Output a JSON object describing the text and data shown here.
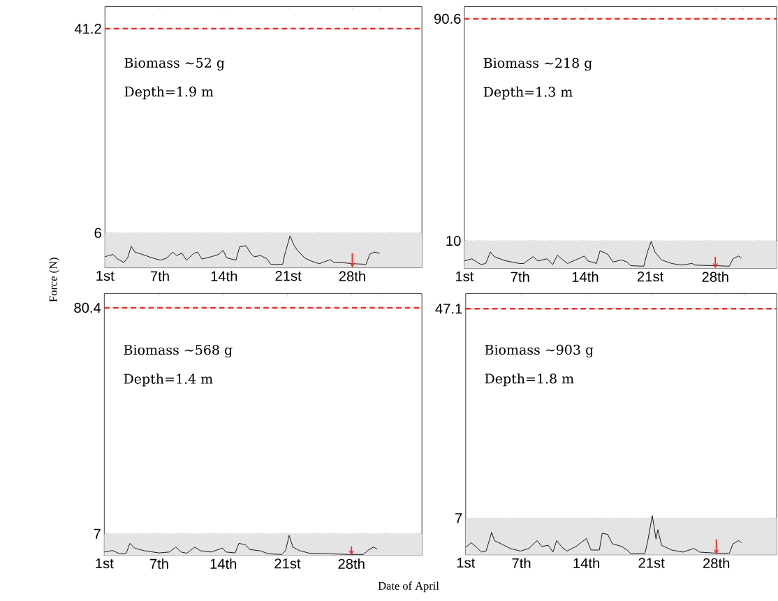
{
  "chart_data": [
    {
      "type": "line",
      "color": "#000000",
      "marker": "none",
      "ylabel": "Force (N)",
      "annotations": [
        "Biomass ∼52  g",
        "Depth=1.9 m"
      ],
      "xlim": [
        1,
        35.6
      ],
      "ylim": [
        0,
        45
      ],
      "grid": "y",
      "xticks": [
        {
          "value": 1,
          "label": "1st"
        },
        {
          "value": 7,
          "label": "7th"
        },
        {
          "value": 14,
          "label": "14th"
        },
        {
          "value": 21,
          "label": "21st"
        },
        {
          "value": 28,
          "label": "28th"
        },
        {
          "value": 31,
          "label": null
        }
      ],
      "yticks": [
        6,
        41.2
      ],
      "ref_lines": [
        {
          "axis": "y",
          "value": 41.2,
          "color": "#e8312f",
          "line_style": "dashed"
        }
      ],
      "bands": [
        {
          "axis": "y",
          "from": 0,
          "to": 6,
          "color": "#e4e4e4"
        }
      ],
      "x": [
        1,
        1.46,
        1.86,
        2.4,
        3.06,
        3.47,
        3.87,
        4.27,
        5.07,
        6.15,
        7.09,
        7.76,
        8.43,
        8.8,
        9.4,
        9.9,
        10.7,
        11.1,
        11.6,
        12.6,
        13.4,
        13.9,
        14.3,
        15.3,
        15.7,
        16.4,
        16.9,
        17.3,
        18.0,
        18.7,
        19.1,
        20.4,
        20.6,
        21.2,
        21.6,
        22.0,
        22.8,
        23.6,
        24.4,
        25.6,
        26.0,
        26.8,
        28.0,
        29.5,
        29.9,
        30.4,
        31.0
      ],
      "values": [
        1.9,
        2.1,
        2.3,
        1.5,
        0.9,
        1.7,
        3.7,
        2.7,
        2.3,
        1.7,
        1.3,
        1.7,
        2.7,
        2.1,
        2.5,
        1.3,
        2.5,
        2.7,
        1.5,
        1.9,
        2.3,
        3.0,
        1.7,
        1.3,
        3.6,
        3.8,
        2.5,
        1.9,
        2.1,
        1.5,
        0.6,
        0.6,
        2.1,
        5.5,
        4.0,
        3.0,
        1.7,
        1.1,
        0.7,
        1.4,
        0.9,
        0.9,
        0.7,
        0.6,
        2.3,
        2.7,
        2.5
      ]
    },
    {
      "type": "line",
      "color": "#000000",
      "marker": "none",
      "annotations": [
        "Biomass ∼218  g",
        "Depth=1.3 m"
      ],
      "xlim": [
        1,
        34.6
      ],
      "ylim": [
        0,
        95
      ],
      "grid": "y",
      "xticks": [
        {
          "value": 1,
          "label": "1st"
        },
        {
          "value": 7,
          "label": "7th"
        },
        {
          "value": 14,
          "label": "14th"
        },
        {
          "value": 21,
          "label": "21st"
        },
        {
          "value": 28,
          "label": "28th"
        },
        {
          "value": 31,
          "label": null
        }
      ],
      "yticks": [
        10,
        90.6
      ],
      "ref_lines": [
        {
          "axis": "y",
          "value": 90.6,
          "color": "#e8312f",
          "line_style": "dashed"
        }
      ],
      "bands": [
        {
          "axis": "y",
          "from": 0,
          "to": 10,
          "color": "#e4e4e4"
        }
      ],
      "x": [
        1,
        1.8,
        2.8,
        3.3,
        3.8,
        4.2,
        5.4,
        6.9,
        7.4,
        8.4,
        8.9,
        9.9,
        10.5,
        11.0,
        11.6,
        12.1,
        13.0,
        13.9,
        14.3,
        15.2,
        15.6,
        16.4,
        17.0,
        17.9,
        18.5,
        18.9,
        20.3,
        20.7,
        21.1,
        21.5,
        22.2,
        23.3,
        24.3,
        25.5,
        25.8,
        28.0,
        29.5,
        29.9,
        30.5,
        30.8
      ],
      "values": [
        2.7,
        3.5,
        1.4,
        1.8,
        6.0,
        4.3,
        2.8,
        1.8,
        1.8,
        4.3,
        2.7,
        3.5,
        1.4,
        4.8,
        3.1,
        1.8,
        3.1,
        4.5,
        2.7,
        1.8,
        6.4,
        5.2,
        2.3,
        3.1,
        2.3,
        1.0,
        0.8,
        6.0,
        9.8,
        6.0,
        3.1,
        1.8,
        1.2,
        1.8,
        1.2,
        1.0,
        0.8,
        3.5,
        4.5,
        3.7
      ]
    },
    {
      "type": "line",
      "color": "#000000",
      "marker": "none",
      "xlabel": "Date of April",
      "annotations": [
        "Biomass ∼568  g",
        "Depth=1.4 m"
      ],
      "xlim": [
        1,
        35.7
      ],
      "ylim": [
        0,
        85
      ],
      "grid": "y",
      "xticks": [
        {
          "value": 1,
          "label": "1st"
        },
        {
          "value": 7,
          "label": "7th"
        },
        {
          "value": 14,
          "label": "14th"
        },
        {
          "value": 21,
          "label": "21st"
        },
        {
          "value": 28,
          "label": "28th"
        },
        {
          "value": 31,
          "label": null
        }
      ],
      "yticks": [
        7,
        80.4
      ],
      "ref_lines": [
        {
          "axis": "y",
          "value": 80.4,
          "color": "#e8312f",
          "line_style": "dashed"
        }
      ],
      "bands": [
        {
          "axis": "y",
          "from": 0,
          "to": 7,
          "color": "#e4e4e4"
        }
      ],
      "x": [
        1,
        1.9,
        2.7,
        3.4,
        3.8,
        4.35,
        5.4,
        7.0,
        8.1,
        8.8,
        9.4,
        10.0,
        10.9,
        11.5,
        12.7,
        13.9,
        14.3,
        15.3,
        15.7,
        16.4,
        16.9,
        18.0,
        18.96,
        20.4,
        20.8,
        21.2,
        21.6,
        22.3,
        23.4,
        25.5,
        28.0,
        29.3,
        29.8,
        30.4,
        30.8
      ],
      "values": [
        1.1,
        1.6,
        0.5,
        0.7,
        3.9,
        2.3,
        1.5,
        0.8,
        1.1,
        2.7,
        1.1,
        0.7,
        2.7,
        1.5,
        1.1,
        2.4,
        1.1,
        0.8,
        3.9,
        3.5,
        1.9,
        1.5,
        0.5,
        0.3,
        1.5,
        6.5,
        2.7,
        1.6,
        0.7,
        0.5,
        0.3,
        0.3,
        1.6,
        2.7,
        2.1
      ]
    },
    {
      "type": "line",
      "color": "#000000",
      "marker": "none",
      "annotations": [
        "Biomass ∼903  g",
        "Depth=1.8 m"
      ],
      "xlim": [
        1,
        34.5
      ],
      "ylim": [
        0,
        50
      ],
      "grid": "y",
      "xticks": [
        {
          "value": 1,
          "label": "1st"
        },
        {
          "value": 7,
          "label": "7th"
        },
        {
          "value": 14,
          "label": "14th"
        },
        {
          "value": 21,
          "label": "21st"
        },
        {
          "value": 28,
          "label": "28th"
        },
        {
          "value": 31,
          "label": null
        }
      ],
      "yticks": [
        7,
        47.1
      ],
      "ref_lines": [
        {
          "axis": "y",
          "value": 47.1,
          "color": "#e8312f",
          "line_style": "dashed"
        }
      ],
      "bands": [
        {
          "axis": "y",
          "from": 0,
          "to": 7,
          "color": "#e4e4e4"
        }
      ],
      "x": [
        1,
        1.6,
        2.2,
        2.7,
        3.2,
        3.8,
        4.1,
        4.8,
        5.8,
        6.9,
        7.8,
        8.7,
        9.2,
        9.9,
        10.4,
        10.8,
        11.4,
        11.9,
        12.9,
        14.0,
        14.5,
        15.4,
        15.7,
        16.3,
        16.8,
        17.8,
        18.4,
        18.8,
        20.3,
        20.6,
        21.1,
        21.5,
        21.7,
        22.1,
        23.2,
        24.4,
        25.6,
        26.2,
        28.0,
        29.4,
        29.8,
        30.4,
        30.7
      ],
      "values": [
        1.4,
        2.3,
        1.4,
        0.5,
        0.7,
        4.3,
        2.7,
        2.1,
        1.2,
        0.7,
        1.2,
        2.7,
        1.6,
        1.8,
        0.5,
        2.7,
        1.4,
        0.7,
        1.6,
        3.1,
        0.9,
        0.9,
        4.1,
        3.9,
        2.1,
        1.6,
        0.9,
        0.2,
        0.2,
        2.5,
        7.5,
        3.0,
        4.8,
        1.8,
        0.9,
        0.5,
        1.2,
        0.5,
        0.3,
        0.3,
        2.1,
        2.7,
        2.3
      ]
    }
  ]
}
